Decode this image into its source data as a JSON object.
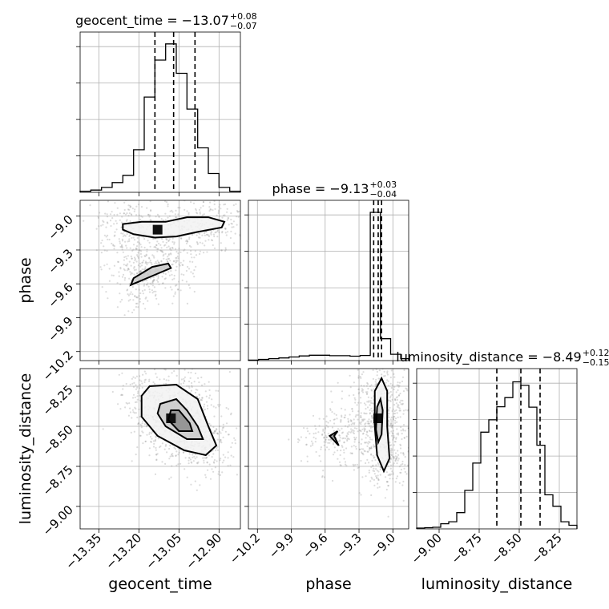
{
  "chart_data": {
    "type": "corner",
    "parameters": [
      "geocent_time",
      "phase",
      "luminosity_distance"
    ],
    "marginals": [
      {
        "name": "geocent_time",
        "title": {
          "base": "geocent_time = −13.07",
          "plus": "+0.08",
          "minus": "−0.07"
        },
        "range": [
          -13.42,
          -12.82
        ],
        "quantiles": [
          -13.14,
          -13.07,
          -12.99
        ],
        "hist_bins": [
          -13.42,
          -13.4,
          -13.38,
          -13.36,
          -13.34,
          -13.32,
          -13.3,
          -13.28,
          -13.26,
          -13.24,
          -13.22,
          -13.2,
          -13.18,
          -13.16,
          -13.14,
          -13.12,
          -13.1,
          -13.08,
          -13.06,
          -13.04,
          -13.02,
          -13.0,
          -12.98,
          -12.96,
          -12.94,
          -12.92,
          -12.9,
          -12.88,
          -12.86,
          -12.84,
          -12.82
        ],
        "hist_counts": [
          0.3,
          0.3,
          0.6,
          0.6,
          1.3,
          1.3,
          2.6,
          2.6,
          4.5,
          4.5,
          11.3,
          11.3,
          25.3,
          25.3,
          35.1,
          35.1,
          39.4,
          39.4,
          31.6,
          31.6,
          22.1,
          22.1,
          11.8,
          11.8,
          5.0,
          5.0,
          1.3,
          1.3,
          0.3,
          0.3
        ],
        "hist_max": 40
      },
      {
        "name": "phase",
        "title": {
          "base": "phase = −9.13",
          "plus": "+0.03",
          "minus": "−0.04"
        },
        "range": [
          -10.28,
          -8.86
        ],
        "quantiles": [
          -9.17,
          -9.13,
          -9.1
        ],
        "hist_bins": [
          -10.28,
          -10.19,
          -10.1,
          -10.01,
          -9.92,
          -9.83,
          -9.74,
          -9.65,
          -9.56,
          -9.47,
          -9.38,
          -9.29,
          -9.2,
          -9.11,
          -9.02,
          -8.93,
          -8.86
        ],
        "hist_counts": [
          0.2,
          0.5,
          0.8,
          1.1,
          1.5,
          1.9,
          2.2,
          2.2,
          2.0,
          2.0,
          1.8,
          2.1,
          61.0,
          9.0,
          2.6,
          0.8
        ],
        "hist_max": 62
      },
      {
        "name": "luminosity_distance",
        "title": {
          "base": "luminosity_distance = −8.49",
          "plus": "+0.12",
          "minus": "−0.15"
        },
        "range": [
          -9.14,
          -8.14
        ],
        "quantiles": [
          -8.64,
          -8.49,
          -8.37
        ],
        "hist_bins": [
          -9.14,
          -9.09,
          -9.04,
          -8.99,
          -8.94,
          -8.89,
          -8.84,
          -8.79,
          -8.74,
          -8.69,
          -8.64,
          -8.59,
          -8.54,
          -8.49,
          -8.44,
          -8.39,
          -8.34,
          -8.29,
          -8.24,
          -8.19,
          -8.14
        ],
        "hist_counts": [
          0.2,
          0.3,
          0.4,
          1.3,
          1.8,
          4.1,
          9.7,
          16.6,
          24.4,
          27.5,
          30.8,
          33.1,
          37.1,
          36.2,
          30.7,
          21.1,
          8.6,
          5.7,
          1.8,
          0.9
        ],
        "hist_max": 38
      }
    ],
    "ticks": {
      "geocent_time": [
        -13.35,
        -13.2,
        -13.05,
        -12.9
      ],
      "phase": [
        -10.2,
        -9.9,
        -9.6,
        -9.3,
        -9.0
      ],
      "luminosity_distance": [
        -9.0,
        -8.75,
        -8.5,
        -8.25
      ]
    },
    "tick_labels": {
      "geocent_time": [
        "−13.35",
        "−13.20",
        "−13.05",
        "−12.90"
      ],
      "phase": [
        "−10.2",
        "−9.9",
        "−9.6",
        "−9.3",
        "−9.0"
      ],
      "luminosity_distance": [
        "−9.00",
        "−8.75",
        "−8.50",
        "−8.25"
      ]
    },
    "axis_labels": {
      "geocent_time": "geocent_time",
      "phase": "phase",
      "luminosity_distance": "luminosity_distance"
    },
    "joint": [
      {
        "x": "geocent_time",
        "y": "phase",
        "peak": [
          -13.13,
          -9.12
        ],
        "contours": [
          [
            [
              -13.26,
              -9.07
            ],
            [
              -13.19,
              -9.05
            ],
            [
              -13.1,
              -9.05
            ],
            [
              -13.02,
              -9.01
            ],
            [
              -12.94,
              -9.01
            ],
            [
              -12.88,
              -9.05
            ],
            [
              -12.89,
              -9.1
            ],
            [
              -12.98,
              -9.14
            ],
            [
              -13.06,
              -9.18
            ],
            [
              -13.14,
              -9.19
            ],
            [
              -13.22,
              -9.16
            ],
            [
              -13.26,
              -9.12
            ]
          ],
          [
            [
              -13.09,
              -9.42
            ],
            [
              -13.08,
              -9.46
            ],
            [
              -13.13,
              -9.51
            ],
            [
              -13.2,
              -9.58
            ],
            [
              -13.23,
              -9.61
            ],
            [
              -13.22,
              -9.55
            ],
            [
              -13.15,
              -9.45
            ]
          ]
        ],
        "grid": true
      },
      {
        "x": "geocent_time",
        "y": "luminosity_distance",
        "peak": [
          -13.08,
          -8.45
        ],
        "contours": [
          [
            [
              -13.19,
              -8.31
            ],
            [
              -13.16,
              -8.25
            ],
            [
              -13.06,
              -8.24
            ],
            [
              -12.98,
              -8.33
            ],
            [
              -12.94,
              -8.5
            ],
            [
              -12.91,
              -8.62
            ],
            [
              -12.95,
              -8.68
            ],
            [
              -13.03,
              -8.65
            ],
            [
              -13.13,
              -8.56
            ],
            [
              -13.19,
              -8.44
            ]
          ],
          [
            [
              -13.12,
              -8.36
            ],
            [
              -13.06,
              -8.33
            ],
            [
              -13.02,
              -8.4
            ],
            [
              -12.98,
              -8.5
            ],
            [
              -12.96,
              -8.58
            ],
            [
              -13.02,
              -8.58
            ],
            [
              -13.1,
              -8.5
            ],
            [
              -13.13,
              -8.42
            ]
          ],
          [
            [
              -13.08,
              -8.4
            ],
            [
              -13.05,
              -8.4
            ],
            [
              -13.01,
              -8.48
            ],
            [
              -13.0,
              -8.53
            ],
            [
              -13.05,
              -8.53
            ],
            [
              -13.09,
              -8.46
            ]
          ]
        ],
        "grid": true
      },
      {
        "x": "phase",
        "y": "luminosity_distance",
        "peak": [
          -9.13,
          -8.45
        ],
        "contours": [
          [
            [
              -9.1,
              -8.2
            ],
            [
              -9.05,
              -8.28
            ],
            [
              -9.05,
              -8.5
            ],
            [
              -9.03,
              -8.7
            ],
            [
              -9.08,
              -8.78
            ],
            [
              -9.14,
              -8.68
            ],
            [
              -9.16,
              -8.5
            ],
            [
              -9.16,
              -8.28
            ]
          ],
          [
            [
              -9.11,
              -8.33
            ],
            [
              -9.09,
              -8.4
            ],
            [
              -9.1,
              -8.55
            ],
            [
              -9.13,
              -8.6
            ],
            [
              -9.15,
              -8.52
            ],
            [
              -9.14,
              -8.38
            ]
          ],
          [
            [
              -9.49,
              -8.53
            ],
            [
              -9.56,
              -8.56
            ],
            [
              -9.48,
              -8.62
            ],
            [
              -9.52,
              -8.56
            ]
          ]
        ],
        "grid": true
      }
    ]
  }
}
